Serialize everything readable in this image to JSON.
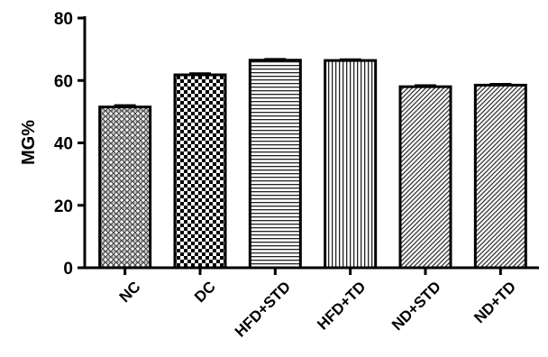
{
  "chart_data": {
    "type": "bar",
    "categories": [
      "NC",
      "DC",
      "HFD+STD",
      "HFD+TD",
      "ND+STD",
      "ND+TD"
    ],
    "values": [
      51.5,
      61.8,
      66.5,
      66.4,
      58.0,
      58.5
    ],
    "errors": [
      0.6,
      0.5,
      0.4,
      0.4,
      0.5,
      0.4
    ],
    "patterns": [
      "weave",
      "checker",
      "horizontal",
      "vertical",
      "diagonal",
      "diagonal"
    ],
    "ylabel": "MG%",
    "ylim": [
      0,
      80
    ],
    "yticks": [
      0,
      20,
      40,
      60,
      80
    ],
    "grid": false
  }
}
